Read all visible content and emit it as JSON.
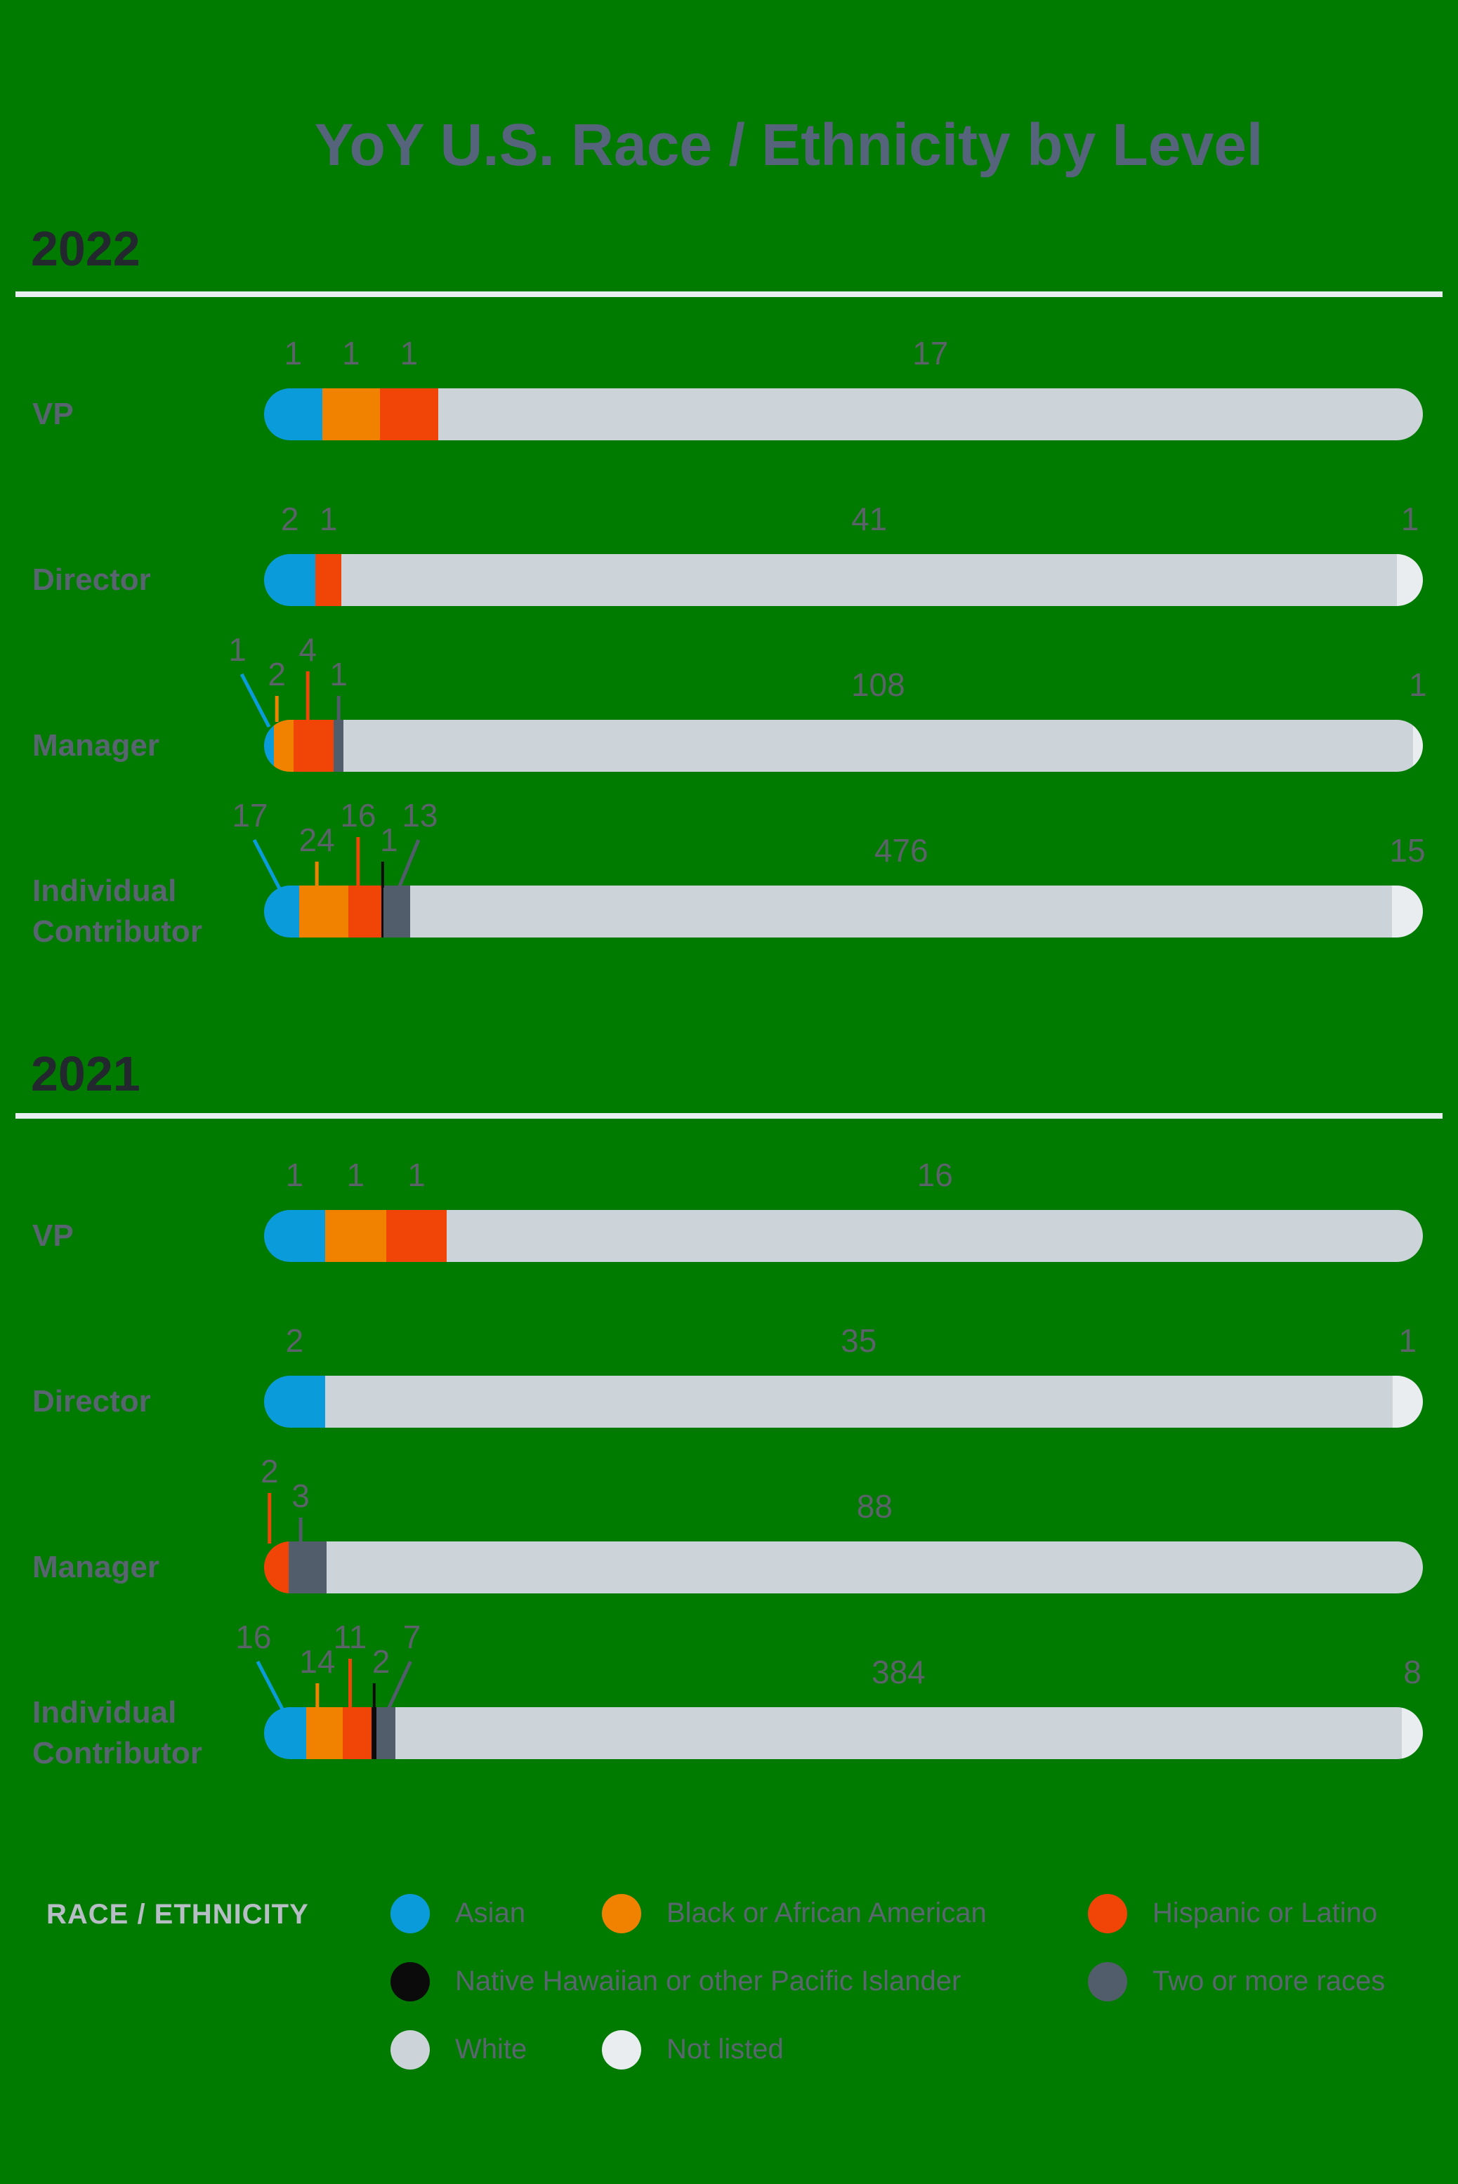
{
  "title": "YoY U.S. Race / Ethnicity by Level",
  "background_color": "#007B00",
  "races": [
    {
      "key": "asian",
      "label": "Asian",
      "color": "#0A9BDB"
    },
    {
      "key": "black",
      "label": "Black or African American",
      "color": "#F08200"
    },
    {
      "key": "hispanic",
      "label": "Hispanic or Latino",
      "color": "#F04506"
    },
    {
      "key": "native_hawaiian",
      "label": "Native Hawaiian or other Pacific Islander",
      "color": "#0B0B0B"
    },
    {
      "key": "two_or_more",
      "label": "Two or more races",
      "color": "#515D6B"
    },
    {
      "key": "white",
      "label": "White",
      "color": "#CCD3D9"
    },
    {
      "key": "not_listed",
      "label": "Not listed",
      "color": "#E9EDF0"
    }
  ],
  "legend": {
    "title": "RACE / ETHNICITY",
    "rows": [
      [
        "asian",
        "black",
        "hispanic"
      ],
      [
        "native_hawaiian",
        "two_or_more"
      ],
      [
        "white",
        "not_listed"
      ]
    ]
  },
  "chart_data": [
    {
      "type": "bar",
      "stacked": true,
      "orientation": "horizontal",
      "normalized": true,
      "year": "2022",
      "categories": [
        "VP",
        "Director",
        "Manager",
        "Individual Contributor"
      ],
      "rows": [
        {
          "level": "VP",
          "segments": [
            {
              "race": "asian",
              "value": 1
            },
            {
              "race": "black",
              "value": 1
            },
            {
              "race": "hispanic",
              "value": 1
            },
            {
              "race": "white",
              "value": 17
            }
          ]
        },
        {
          "level": "Director",
          "segments": [
            {
              "race": "asian",
              "value": 2
            },
            {
              "race": "hispanic",
              "value": 1
            },
            {
              "race": "white",
              "value": 41
            },
            {
              "race": "not_listed",
              "value": 1
            }
          ]
        },
        {
          "level": "Manager",
          "segments": [
            {
              "race": "asian",
              "value": 1,
              "callout": true
            },
            {
              "race": "black",
              "value": 2,
              "callout": true
            },
            {
              "race": "hispanic",
              "value": 4,
              "callout": true
            },
            {
              "race": "two_or_more",
              "value": 1,
              "callout": true
            },
            {
              "race": "white",
              "value": 108
            },
            {
              "race": "not_listed",
              "value": 1
            }
          ]
        },
        {
          "level": "Individual Contributor",
          "segments": [
            {
              "race": "asian",
              "value": 17,
              "callout": true
            },
            {
              "race": "black",
              "value": 24,
              "callout": true
            },
            {
              "race": "hispanic",
              "value": 16,
              "callout": true
            },
            {
              "race": "native_hawaiian",
              "value": 1,
              "callout": true
            },
            {
              "race": "two_or_more",
              "value": 13,
              "callout": true
            },
            {
              "race": "white",
              "value": 476
            },
            {
              "race": "not_listed",
              "value": 15
            }
          ]
        }
      ]
    },
    {
      "type": "bar",
      "stacked": true,
      "orientation": "horizontal",
      "normalized": true,
      "year": "2021",
      "categories": [
        "VP",
        "Director",
        "Manager",
        "Individual Contributor"
      ],
      "rows": [
        {
          "level": "VP",
          "segments": [
            {
              "race": "asian",
              "value": 1
            },
            {
              "race": "black",
              "value": 1
            },
            {
              "race": "hispanic",
              "value": 1
            },
            {
              "race": "white",
              "value": 16
            }
          ]
        },
        {
          "level": "Director",
          "segments": [
            {
              "race": "asian",
              "value": 2
            },
            {
              "race": "white",
              "value": 35
            },
            {
              "race": "not_listed",
              "value": 1
            }
          ]
        },
        {
          "level": "Manager",
          "segments": [
            {
              "race": "hispanic",
              "value": 2,
              "callout": true
            },
            {
              "race": "two_or_more",
              "value": 3,
              "callout": true
            },
            {
              "race": "white",
              "value": 88
            }
          ]
        },
        {
          "level": "Individual Contributor",
          "segments": [
            {
              "race": "asian",
              "value": 16,
              "callout": true
            },
            {
              "race": "black",
              "value": 14,
              "callout": true
            },
            {
              "race": "hispanic",
              "value": 11,
              "callout": true
            },
            {
              "race": "native_hawaiian",
              "value": 2,
              "callout": true
            },
            {
              "race": "two_or_more",
              "value": 7,
              "callout": true
            },
            {
              "race": "white",
              "value": 384
            },
            {
              "race": "not_listed",
              "value": 8
            }
          ]
        }
      ]
    }
  ]
}
